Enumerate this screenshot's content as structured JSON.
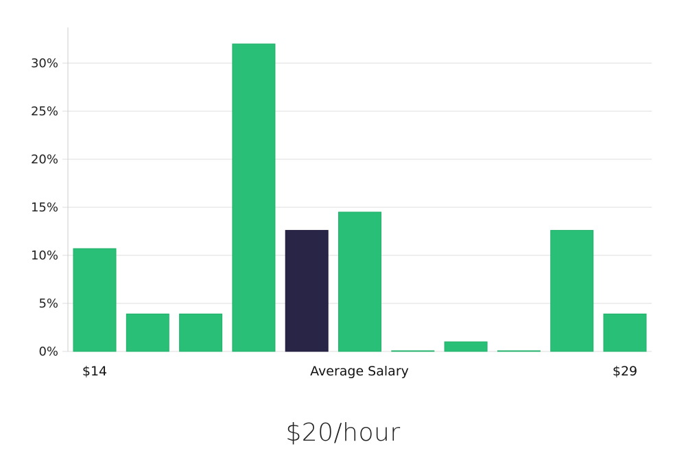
{
  "headline": "$20/hour",
  "chart_data": {
    "type": "bar",
    "values": [
      10.7,
      3.9,
      3.9,
      32.0,
      12.6,
      14.5,
      0.05,
      1.0,
      0.05,
      12.6,
      3.9
    ],
    "highlight_index": 4,
    "ylim": [
      0,
      33
    ],
    "yticks": [
      0,
      5,
      10,
      15,
      20,
      25,
      30
    ],
    "ytick_suffix": "%",
    "x_labels": {
      "left": "$14",
      "center": "Average Salary",
      "right": "$29"
    },
    "grid": true,
    "colors": {
      "bar": "#2abf77",
      "bar_stroke": "#22b06a",
      "highlight": "#282546",
      "highlight_stroke": "#1c1a38",
      "grid": "#dddddd"
    }
  }
}
